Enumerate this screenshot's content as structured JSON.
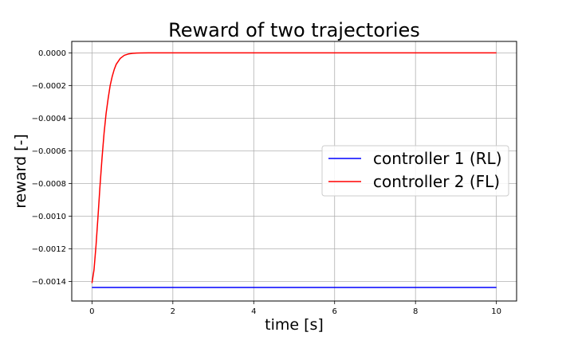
{
  "chart_data": {
    "type": "line",
    "title": "Reward of two trajectories",
    "xlabel": "time [s]",
    "ylabel": "reward [-]",
    "xlim": [
      -0.5,
      10.5
    ],
    "ylim": [
      -0.00152,
      7e-05
    ],
    "xticks": [
      0,
      2,
      4,
      6,
      8,
      10
    ],
    "xtick_labels": [
      "0",
      "2",
      "4",
      "6",
      "8",
      "10"
    ],
    "yticks": [
      0.0,
      -0.0002,
      -0.0004,
      -0.0006,
      -0.0008,
      -0.001,
      -0.0012,
      -0.0014
    ],
    "ytick_labels": [
      "0.0000",
      "−0.0002",
      "−0.0004",
      "−0.0006",
      "−0.0008",
      "−0.0010",
      "−0.0012",
      "−0.0014"
    ],
    "grid": true,
    "legend_position": "center-right",
    "series": [
      {
        "name": "controller 1 (RL)",
        "color": "#0000ff",
        "x": [
          0,
          10
        ],
        "y": [
          -0.001437,
          -0.001437
        ]
      },
      {
        "name": "controller 2 (FL)",
        "color": "#ff0000",
        "x": [
          0,
          0.05,
          0.1,
          0.15,
          0.2,
          0.25,
          0.3,
          0.35,
          0.4,
          0.45,
          0.5,
          0.55,
          0.6,
          0.7,
          0.8,
          0.9,
          1.0,
          1.1,
          1.2,
          1.4,
          1.6,
          2,
          3,
          4,
          5,
          6,
          7,
          8,
          9,
          10
        ],
        "y": [
          -0.00141,
          -0.00133,
          -0.00118,
          -0.001,
          -0.00081,
          -0.00064,
          -0.00049,
          -0.00037,
          -0.00028,
          -0.0002,
          -0.000145,
          -0.000102,
          -7e-05,
          -3.4e-05,
          -1.5e-05,
          -7e-06,
          -3e-06,
          -1.5e-06,
          -7e-07,
          -2e-07,
          0,
          0,
          0,
          0,
          0,
          0,
          0,
          0,
          0,
          0
        ]
      }
    ]
  }
}
